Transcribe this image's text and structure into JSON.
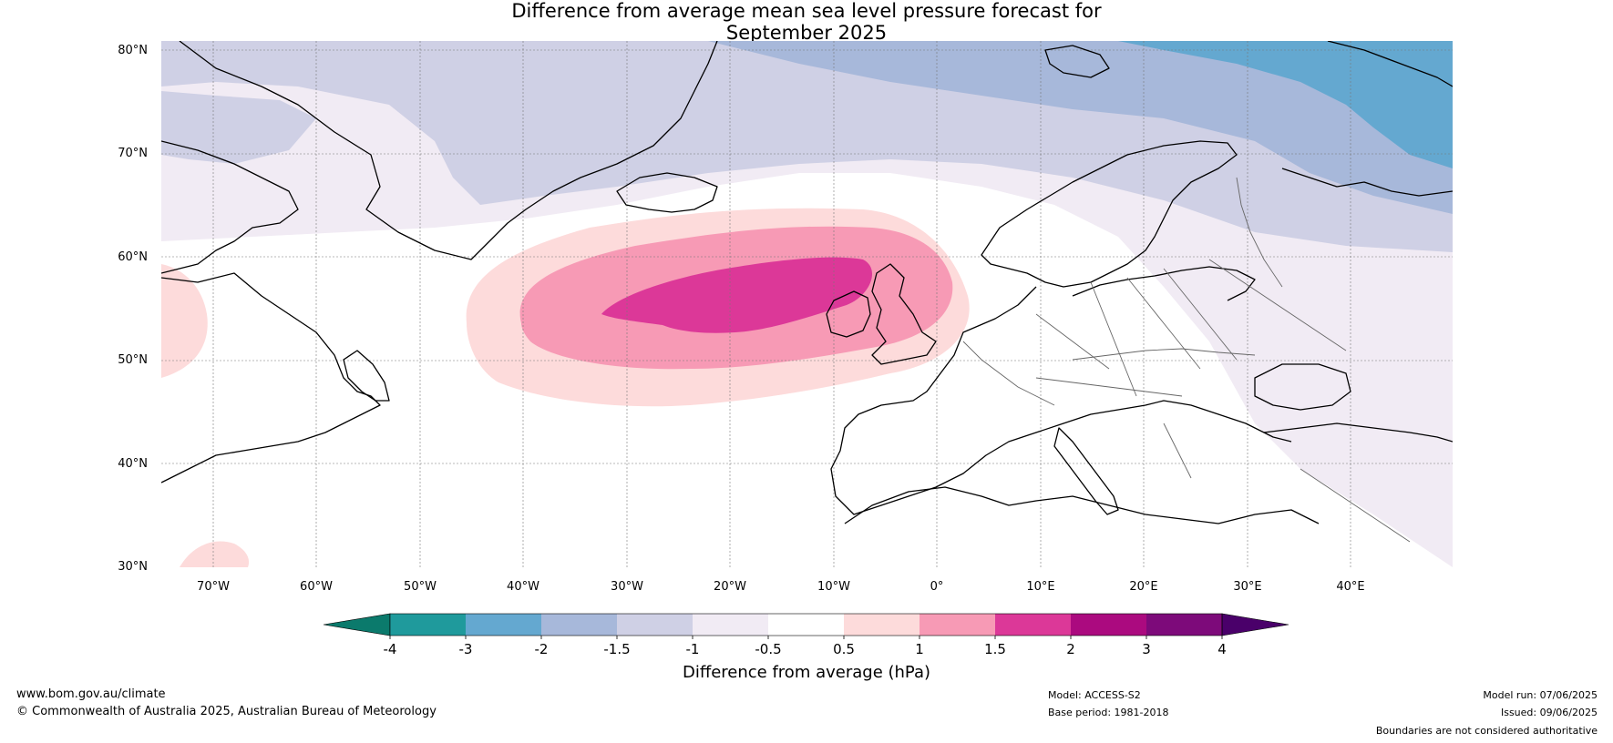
{
  "title_line1": "Difference from average mean sea level pressure forecast for",
  "title_line2": "September 2025",
  "lat_labels": [
    "80°N",
    "70°N",
    "60°N",
    "50°N",
    "40°N",
    "30°N"
  ],
  "lon_labels": [
    "70°W",
    "60°W",
    "50°W",
    "40°W",
    "30°W",
    "20°W",
    "10°W",
    "0°",
    "10°E",
    "20°E",
    "30°E",
    "40°E"
  ],
  "colorbar": {
    "title": "Difference from average (hPa)",
    "ticks": [
      "-4",
      "-3",
      "-2",
      "-1.5",
      "-1",
      "-0.5",
      "0.5",
      "1",
      "1.5",
      "2",
      "3",
      "4"
    ],
    "colors": [
      "#0b7a6c",
      "#1f9a9c",
      "#64a8d0",
      "#a7b8da",
      "#cfd0e5",
      "#f1ebf4",
      "#ffffff",
      "#fddbdb",
      "#f79ab5",
      "#dc3898",
      "#ab0a7f",
      "#7d0a7a",
      "#4a006a"
    ]
  },
  "footer": {
    "url": "www.bom.gov.au/climate",
    "copyright": "© Commonwealth of Australia 2025, Australian Bureau of Meteorology",
    "model": "Model: ACCESS-S2",
    "base_period": "Base period: 1981-2018",
    "model_run": "Model run: 07/06/2025",
    "issued": "Issued: 09/06/2025",
    "disclaimer": "Boundaries are not considered authoritative"
  }
}
